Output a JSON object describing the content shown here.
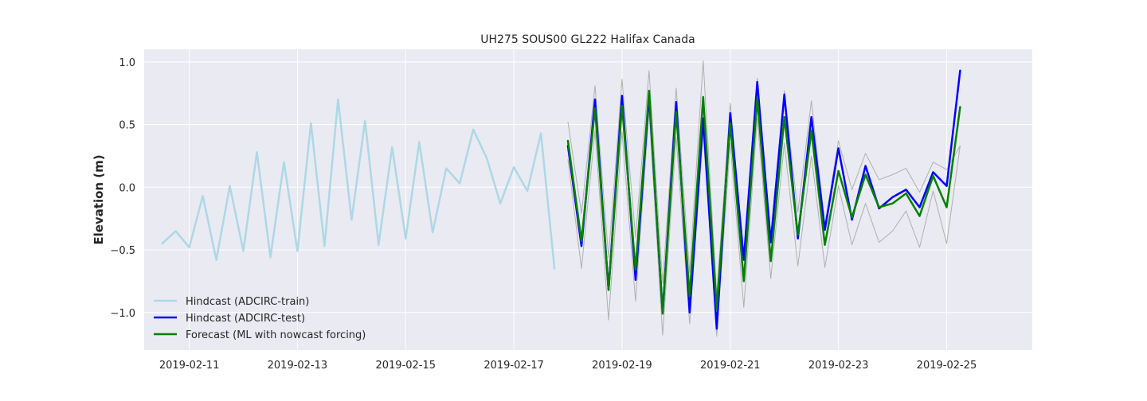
{
  "chart_data": {
    "type": "line",
    "title": "UH275 SOUS00 GL222 Halifax Canada",
    "xlabel": "",
    "ylabel": "Elevation (m)",
    "x_ticks": [
      "2019-02-11",
      "2019-02-13",
      "2019-02-15",
      "2019-02-17",
      "2019-02-19",
      "2019-02-21",
      "2019-02-23",
      "2019-02-25"
    ],
    "y_ticks": [
      "−1.0",
      "−0.5",
      "0.0",
      "0.5",
      "1.0"
    ],
    "xlim": [
      "2019-02-10 04:00",
      "2019-02-26 14:00"
    ],
    "ylim": [
      -1.3,
      1.1
    ],
    "grid": true,
    "legend": "lower-left",
    "colors": {
      "background": "#eaeaf2",
      "grid": "#ffffff",
      "train": "#add8e6",
      "test": "#0000ff",
      "forecast": "#008000",
      "bounds": "#b0b0b0"
    },
    "series": [
      {
        "name": "Hindcast (ADCIRC-train)",
        "color": "#add8e6",
        "linewidth": 2.5,
        "x": [
          "2019-02-10 12:00",
          "2019-02-10 18:00",
          "2019-02-11 00:00",
          "2019-02-11 06:00",
          "2019-02-11 12:00",
          "2019-02-11 18:00",
          "2019-02-12 00:00",
          "2019-02-12 06:00",
          "2019-02-12 12:00",
          "2019-02-12 18:00",
          "2019-02-13 00:00",
          "2019-02-13 06:00",
          "2019-02-13 12:00",
          "2019-02-13 18:00",
          "2019-02-14 00:00",
          "2019-02-14 06:00",
          "2019-02-14 12:00",
          "2019-02-14 18:00",
          "2019-02-15 00:00",
          "2019-02-15 06:00",
          "2019-02-15 12:00",
          "2019-02-15 18:00",
          "2019-02-16 00:00",
          "2019-02-16 06:00",
          "2019-02-16 12:00",
          "2019-02-16 18:00",
          "2019-02-17 00:00",
          "2019-02-17 06:00",
          "2019-02-17 12:00",
          "2019-02-17 18:00"
        ],
        "y": [
          -0.45,
          -0.35,
          -0.48,
          -0.07,
          -0.58,
          0.01,
          -0.51,
          0.28,
          -0.56,
          0.2,
          -0.51,
          0.51,
          -0.47,
          0.7,
          -0.26,
          0.53,
          -0.46,
          0.32,
          -0.41,
          0.36,
          -0.36,
          0.15,
          0.03,
          0.46,
          0.23,
          -0.13,
          0.16,
          -0.03,
          0.43,
          -0.65
        ]
      },
      {
        "name": "Hindcast (ADCIRC-test)",
        "color": "#0000ff",
        "linewidth": 2.5,
        "x": [
          "2019-02-18 00:00",
          "2019-02-18 06:00",
          "2019-02-18 12:00",
          "2019-02-18 18:00",
          "2019-02-19 00:00",
          "2019-02-19 06:00",
          "2019-02-19 12:00",
          "2019-02-19 18:00",
          "2019-02-20 00:00",
          "2019-02-20 06:00",
          "2019-02-20 12:00",
          "2019-02-20 18:00",
          "2019-02-21 00:00",
          "2019-02-21 06:00",
          "2019-02-21 12:00",
          "2019-02-21 18:00",
          "2019-02-22 00:00",
          "2019-02-22 06:00",
          "2019-02-22 12:00",
          "2019-02-22 18:00",
          "2019-02-23 00:00",
          "2019-02-23 06:00",
          "2019-02-23 12:00",
          "2019-02-23 18:00",
          "2019-02-24 00:00",
          "2019-02-24 06:00",
          "2019-02-24 12:00",
          "2019-02-24 18:00",
          "2019-02-25 00:00",
          "2019-02-25 06:00"
        ],
        "y": [
          0.33,
          -0.47,
          0.7,
          -0.82,
          0.73,
          -0.74,
          0.73,
          -1.0,
          0.68,
          -1.0,
          0.55,
          -1.13,
          0.59,
          -0.58,
          0.84,
          -0.44,
          0.74,
          -0.41,
          0.56,
          -0.34,
          0.31,
          -0.26,
          0.17,
          -0.17,
          -0.08,
          -0.02,
          -0.16,
          0.12,
          0.01,
          0.93
        ]
      },
      {
        "name": "Forecast (ML with nowcast forcing)",
        "color": "#008000",
        "linewidth": 2.5,
        "x": [
          "2019-02-18 00:00",
          "2019-02-18 06:00",
          "2019-02-18 12:00",
          "2019-02-18 18:00",
          "2019-02-19 00:00",
          "2019-02-19 06:00",
          "2019-02-19 12:00",
          "2019-02-19 18:00",
          "2019-02-20 00:00",
          "2019-02-20 06:00",
          "2019-02-20 12:00",
          "2019-02-20 18:00",
          "2019-02-21 00:00",
          "2019-02-21 06:00",
          "2019-02-21 12:00",
          "2019-02-21 18:00",
          "2019-02-22 00:00",
          "2019-02-22 06:00",
          "2019-02-22 12:00",
          "2019-02-22 18:00",
          "2019-02-23 00:00",
          "2019-02-23 06:00",
          "2019-02-23 12:00",
          "2019-02-23 18:00",
          "2019-02-24 00:00",
          "2019-02-24 06:00",
          "2019-02-24 12:00",
          "2019-02-24 18:00",
          "2019-02-25 00:00",
          "2019-02-25 06:00"
        ],
        "y": [
          0.37,
          -0.43,
          0.63,
          -0.82,
          0.65,
          -0.66,
          0.77,
          -1.01,
          0.6,
          -0.87,
          0.72,
          -0.97,
          0.51,
          -0.75,
          0.71,
          -0.59,
          0.56,
          -0.38,
          0.45,
          -0.46,
          0.13,
          -0.24,
          0.1,
          -0.16,
          -0.13,
          -0.05,
          -0.23,
          0.09,
          -0.16,
          0.64
        ]
      },
      {
        "color": "#b0b0b0",
        "linewidth": 1,
        "x": [
          "2019-02-18 00:00",
          "2019-02-18 06:00",
          "2019-02-18 12:00",
          "2019-02-18 18:00",
          "2019-02-19 00:00",
          "2019-02-19 06:00",
          "2019-02-19 12:00",
          "2019-02-19 18:00",
          "2019-02-20 00:00",
          "2019-02-20 06:00",
          "2019-02-20 12:00",
          "2019-02-20 18:00",
          "2019-02-21 00:00",
          "2019-02-21 06:00",
          "2019-02-21 12:00",
          "2019-02-21 18:00",
          "2019-02-22 00:00",
          "2019-02-22 06:00",
          "2019-02-22 12:00",
          "2019-02-22 18:00",
          "2019-02-23 00:00",
          "2019-02-23 06:00",
          "2019-02-23 12:00",
          "2019-02-23 18:00",
          "2019-02-24 00:00",
          "2019-02-24 06:00",
          "2019-02-24 12:00",
          "2019-02-24 18:00",
          "2019-02-25 00:00",
          "2019-02-25 06:00"
        ],
        "y": [
          0.52,
          -0.21,
          0.81,
          -0.56,
          0.86,
          -0.4,
          0.93,
          -0.77,
          0.79,
          -0.68,
          1.01,
          -0.86,
          0.67,
          -0.54,
          0.87,
          -0.39,
          0.77,
          -0.2,
          0.69,
          -0.3,
          0.37,
          -0.02,
          0.27,
          0.06,
          0.1,
          0.15,
          -0.04,
          0.2,
          0.14,
          0.33
        ]
      },
      {
        "color": "#b0b0b0",
        "linewidth": 1,
        "x": [
          "2019-02-18 00:00",
          "2019-02-18 06:00",
          "2019-02-18 12:00",
          "2019-02-18 18:00",
          "2019-02-19 00:00",
          "2019-02-19 06:00",
          "2019-02-19 12:00",
          "2019-02-19 18:00",
          "2019-02-20 00:00",
          "2019-02-20 06:00",
          "2019-02-20 12:00",
          "2019-02-20 18:00",
          "2019-02-21 00:00",
          "2019-02-21 06:00",
          "2019-02-21 12:00",
          "2019-02-21 18:00",
          "2019-02-22 00:00",
          "2019-02-22 06:00",
          "2019-02-22 12:00",
          "2019-02-22 18:00",
          "2019-02-23 00:00",
          "2019-02-23 06:00",
          "2019-02-23 12:00",
          "2019-02-23 18:00",
          "2019-02-24 00:00",
          "2019-02-24 06:00",
          "2019-02-24 12:00",
          "2019-02-24 18:00",
          "2019-02-25 00:00",
          "2019-02-25 06:00"
        ],
        "y": [
          0.22,
          -0.65,
          0.45,
          -1.06,
          0.44,
          -0.91,
          0.61,
          -1.18,
          0.4,
          -1.09,
          0.43,
          -1.19,
          0.35,
          -0.96,
          0.55,
          -0.73,
          0.35,
          -0.63,
          0.25,
          -0.64,
          0.01,
          -0.46,
          -0.13,
          -0.44,
          -0.35,
          -0.19,
          -0.48,
          -0.03,
          -0.45,
          0.33
        ]
      }
    ]
  }
}
